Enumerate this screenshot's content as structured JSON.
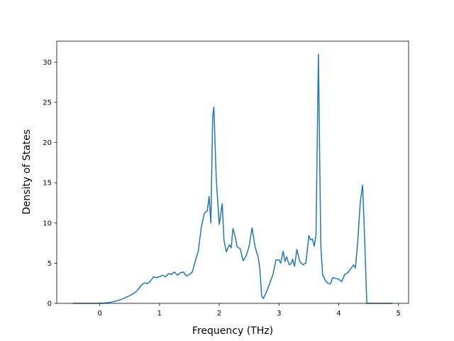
{
  "chart_data": {
    "type": "line",
    "x_label": "Frequency (THz)",
    "y_label": "Density of States",
    "x": [
      -0.45,
      -0.2,
      0,
      0.1,
      0.2,
      0.3,
      0.4,
      0.5,
      0.6,
      0.65,
      0.7,
      0.75,
      0.8,
      0.85,
      0.9,
      0.95,
      1.0,
      1.05,
      1.1,
      1.15,
      1.2,
      1.25,
      1.3,
      1.35,
      1.4,
      1.45,
      1.5,
      1.55,
      1.6,
      1.65,
      1.7,
      1.75,
      1.8,
      1.83,
      1.86,
      1.89,
      1.91,
      1.95,
      2.0,
      2.05,
      2.08,
      2.12,
      2.17,
      2.2,
      2.23,
      2.27,
      2.3,
      2.35,
      2.4,
      2.45,
      2.5,
      2.55,
      2.6,
      2.65,
      2.68,
      2.71,
      2.74,
      2.8,
      2.85,
      2.9,
      2.95,
      3.0,
      3.03,
      3.07,
      3.1,
      3.13,
      3.17,
      3.2,
      3.23,
      3.26,
      3.3,
      3.35,
      3.4,
      3.45,
      3.5,
      3.53,
      3.56,
      3.59,
      3.62,
      3.66,
      3.7,
      3.73,
      3.78,
      3.82,
      3.86,
      3.9,
      3.95,
      4.0,
      4.05,
      4.1,
      4.15,
      4.2,
      4.25,
      4.28,
      4.32,
      4.36,
      4.4,
      4.43,
      4.47,
      4.6,
      4.9
    ],
    "series": [
      {
        "color": "#1f77b4",
        "values": [
          0,
          0,
          0,
          0.05,
          0.15,
          0.35,
          0.6,
          0.95,
          1.4,
          1.8,
          2.3,
          2.55,
          2.45,
          2.8,
          3.3,
          3.2,
          3.3,
          3.5,
          3.3,
          3.7,
          3.6,
          3.9,
          3.5,
          3.8,
          3.9,
          3.4,
          3.6,
          3.9,
          5.3,
          6.5,
          9.5,
          11.2,
          11.5,
          13.3,
          10,
          23.2,
          24.4,
          15.5,
          9.8,
          12.4,
          7.8,
          6.4,
          7.3,
          6.9,
          9.3,
          8.2,
          7.0,
          6.8,
          5.3,
          5.9,
          7.1,
          9.4,
          7.0,
          5.8,
          4.3,
          0.9,
          0.6,
          1.6,
          2.6,
          3.6,
          5.4,
          5.4,
          5.0,
          6.5,
          5.2,
          5.8,
          4.8,
          4.9,
          5.5,
          4.6,
          6.7,
          5.2,
          4.8,
          5.0,
          8.4,
          7.9,
          8.0,
          7.1,
          8.5,
          31.0,
          7.2,
          3.6,
          2.8,
          2.5,
          2.4,
          3.2,
          3.1,
          3.0,
          2.7,
          3.6,
          3.8,
          4.3,
          4.8,
          4.4,
          7.8,
          12.5,
          14.7,
          9,
          0,
          0,
          0
        ]
      }
    ],
    "xlim": [
      -0.72,
      5.17
    ],
    "ylim": [
      0,
      32.6
    ],
    "xticks": [
      0,
      1,
      2,
      3,
      4,
      5
    ],
    "yticks": [
      0,
      5,
      10,
      15,
      20,
      25,
      30
    ]
  }
}
